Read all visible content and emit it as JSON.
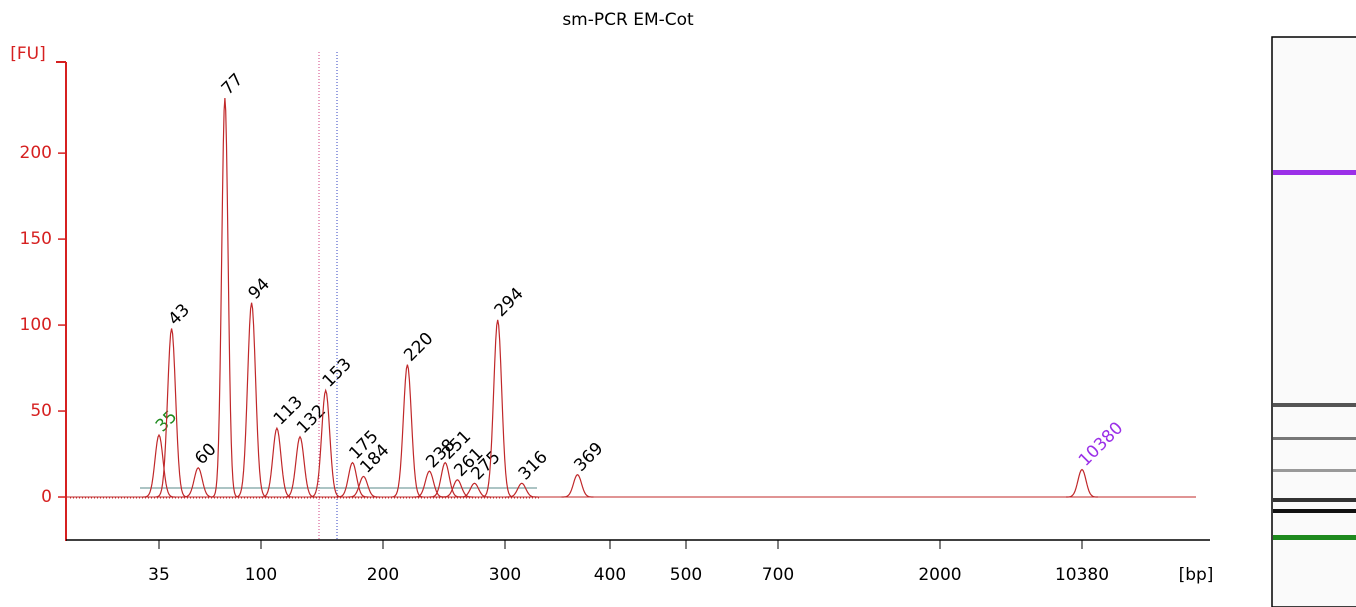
{
  "chart_data": {
    "type": "electropherogram",
    "title": "sm-PCR EM-Cot",
    "y_label": "[FU]",
    "x_label": "[bp]",
    "color": "#c0282a",
    "ylim": [
      -25,
      253
    ],
    "yticks": [
      0,
      50,
      100,
      150,
      200
    ],
    "xticks": [
      35,
      100,
      200,
      300,
      400,
      500,
      700,
      2000,
      10380
    ],
    "peaks": {
      "labels": [
        "35",
        "43",
        "60",
        "77",
        "94",
        "113",
        "132",
        "153",
        "175",
        "184",
        "220",
        "238",
        "251",
        "261",
        "275",
        "294",
        "316",
        "369",
        "10380"
      ],
      "bp": [
        35,
        43,
        60,
        77,
        94,
        113,
        132,
        153,
        175,
        184,
        220,
        238,
        251,
        261,
        275,
        294,
        316,
        369,
        10380
      ],
      "values": [
        36,
        98,
        17,
        232,
        113,
        40,
        35,
        62,
        20,
        12,
        77,
        15,
        20,
        10,
        8,
        103,
        8,
        13,
        16
      ],
      "label_colors": [
        "#1e8a1e",
        "#000000",
        "#000000",
        "#000000",
        "#000000",
        "#000000",
        "#000000",
        "#000000",
        "#000000",
        "#000000",
        "#000000",
        "#000000",
        "#000000",
        "#000000",
        "#000000",
        "#000000",
        "#000000",
        "#000000",
        "#9b30e8"
      ]
    }
  }
}
